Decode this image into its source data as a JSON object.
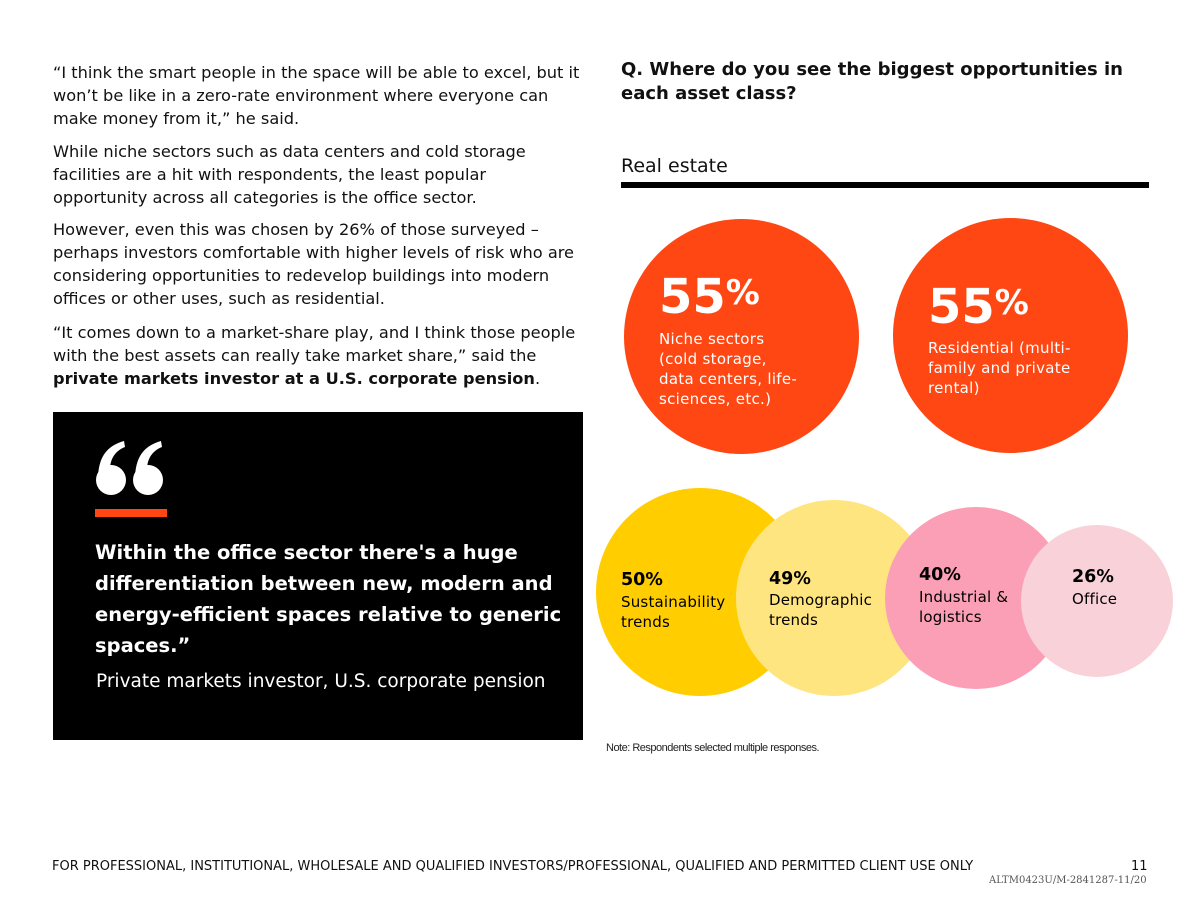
{
  "article": {
    "p1": "“I think the smart people in the space will be able to excel, but it won’t be like in a zero-rate environment where everyone can make money from it,” he said.",
    "p2": "While niche sectors such as data centers and cold storage facilities are a hit with respondents, the least popular opportunity across all categories is the office sector.",
    "p3": "However, even this was chosen by 26% of those surveyed – perhaps investors comfortable with higher levels of risk who are considering opportunities to redevelop buildings into modern offices or other uses, such as residential.",
    "p4_text": "“It comes down to a market-share play, and I think those people with the best assets can really take market share,” said the ",
    "p4_bold": "private markets investor at a U.S. corporate pension",
    "p4_end": "."
  },
  "quote": {
    "text": "Within the office sector there's a huge differentiation between new, modern and energy-efficient spaces relative to generic spaces.”",
    "attribution": "Private markets investor, U.S. corporate pension"
  },
  "survey": {
    "question": "Q. Where do you see the biggest opportunities in each asset class?",
    "section": "Real estate",
    "note": "Note: Respondents selected multiple responses."
  },
  "chart_data": {
    "type": "bubble",
    "title": "Q. Where do you see the biggest opportunities in each asset class?",
    "subtitle": "Real estate",
    "unit": "%",
    "items": [
      {
        "label": "Niche sectors (cold storage, data centers, life-sciences, etc.)",
        "lines": [
          "Niche sectors",
          "(cold storage,",
          "data centers, life-",
          "sciences, etc.)"
        ],
        "value": 55,
        "color": "#ff4713"
      },
      {
        "label": "Residential (multi-family and private rental)",
        "lines": [
          "Residential (multi-",
          "family and private",
          "rental)"
        ],
        "value": 55,
        "color": "#ff4713"
      },
      {
        "label": "Sustainability trends",
        "lines": [
          "Sustainability",
          "trends"
        ],
        "value": 50,
        "color": "#ffcd00"
      },
      {
        "label": "Demographic trends",
        "lines": [
          "Demographic",
          "trends"
        ],
        "value": 49,
        "color": "#ffe57f"
      },
      {
        "label": "Industrial & logistics",
        "lines": [
          "Industrial &",
          "logistics"
        ],
        "value": 40,
        "color": "#fa9fb5"
      },
      {
        "label": "Office",
        "lines": [
          "Office"
        ],
        "value": 26,
        "color": "#f9d1d9"
      }
    ]
  },
  "footer": {
    "disclaimer": "FOR PROFESSIONAL, INSTITUTIONAL, WHOLESALE AND QUALIFIED INVESTORS/PROFESSIONAL, QUALIFIED AND PERMITTED CLIENT USE ONLY",
    "page": "11",
    "code": "ALTM0423U/M-2841287-11/20"
  }
}
